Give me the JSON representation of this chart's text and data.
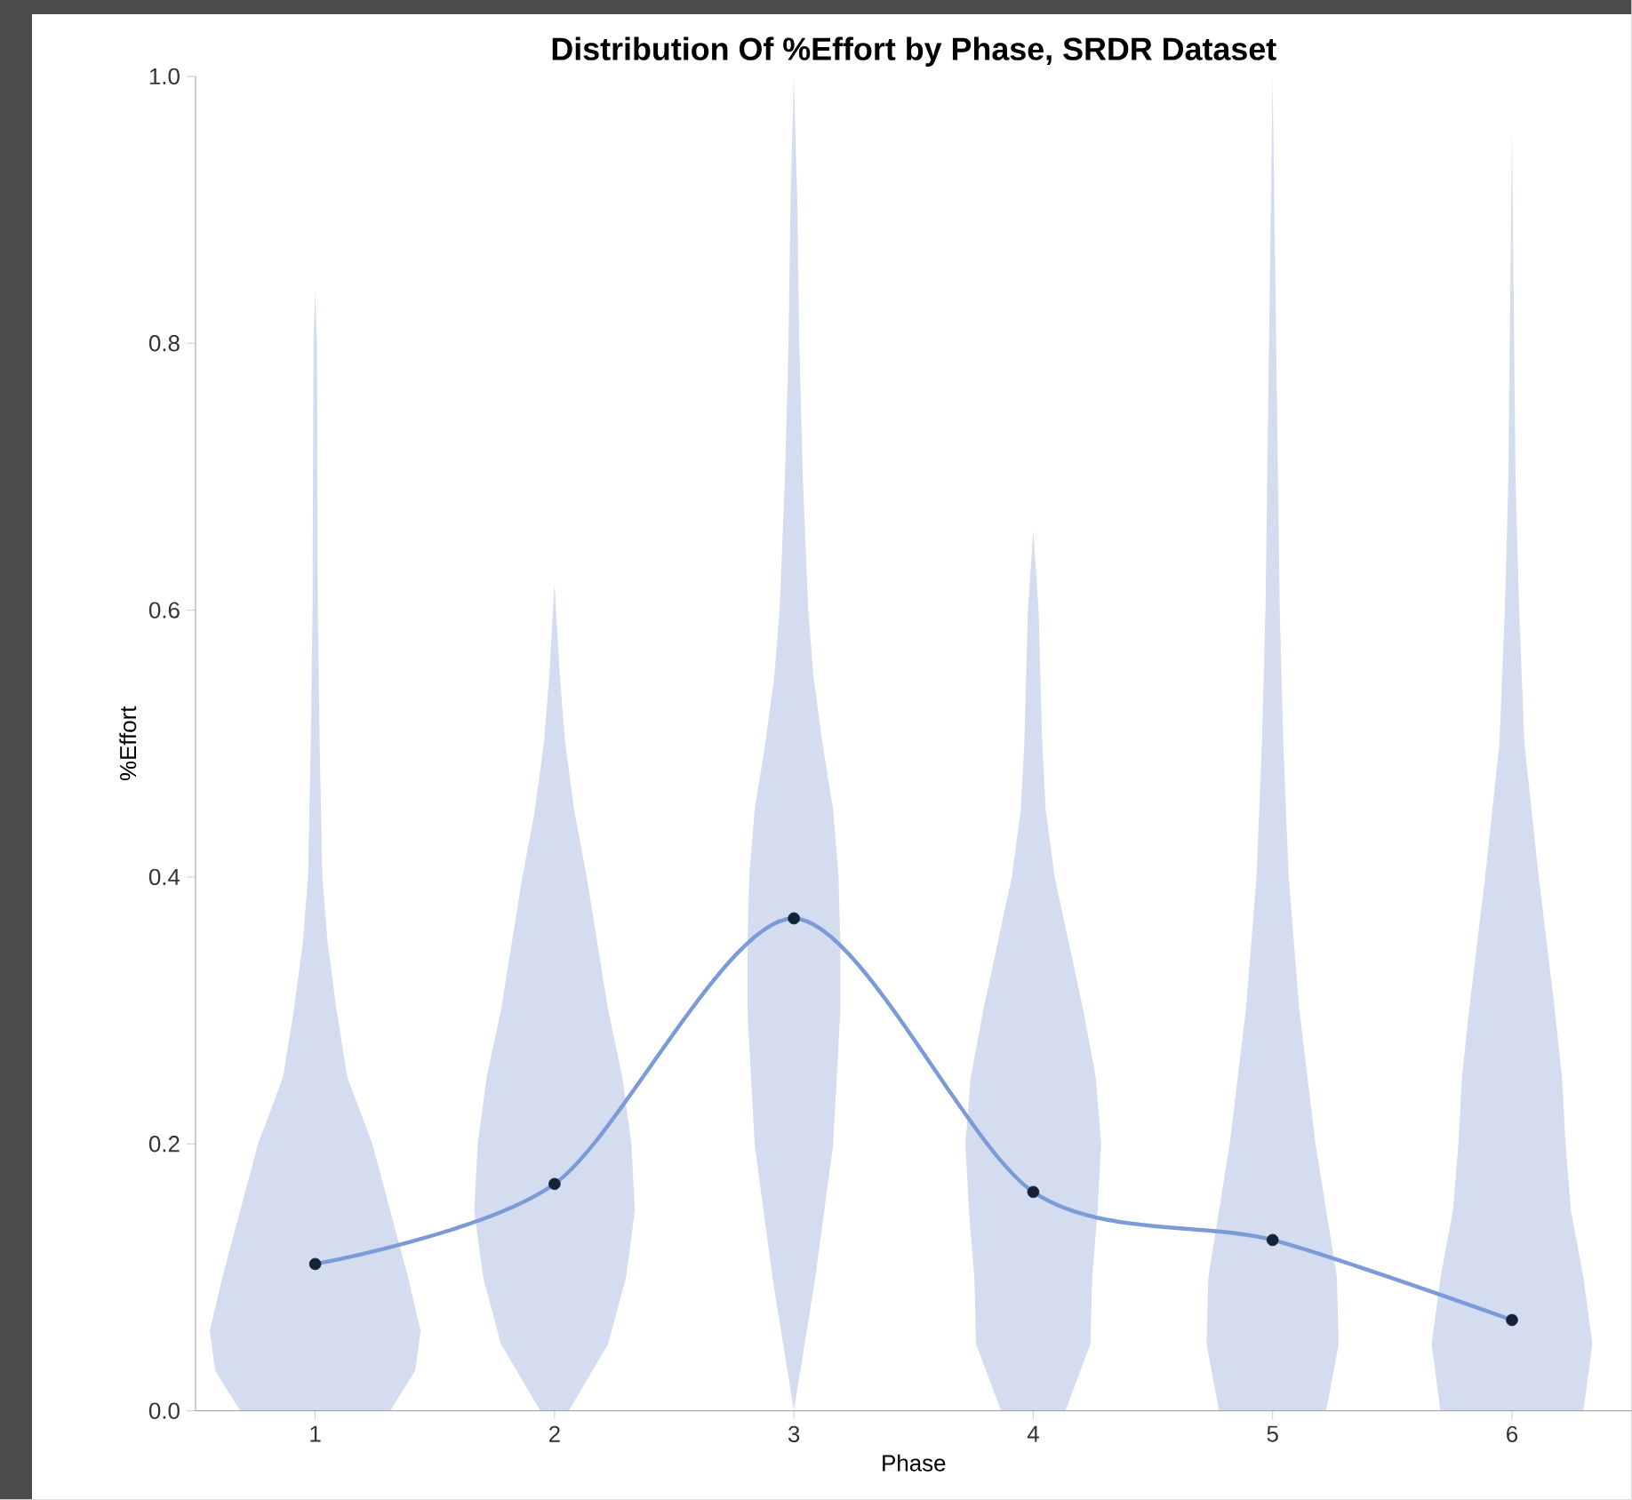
{
  "chart_data": {
    "type": "line",
    "title": "Distribution Of %Effort by Phase, SRDR Dataset",
    "xlabel": "Phase",
    "ylabel": "%Effort",
    "categories": [
      "1",
      "2",
      "3",
      "4",
      "5",
      "6"
    ],
    "series": [
      {
        "color": "#7b9bd8",
        "values": [
          0.11,
          0.17,
          0.369,
          0.164,
          0.128,
          0.068
        ]
      }
    ],
    "ylim": [
      0,
      1
    ],
    "yticks": [
      {
        "value": 0,
        "label": "0.0"
      },
      {
        "value": 0.2,
        "label": "0.2"
      },
      {
        "value": 0.4,
        "label": "0.4"
      },
      {
        "value": 0.6,
        "label": "0.6"
      },
      {
        "value": 0.8,
        "label": "0.8"
      },
      {
        "value": 1,
        "label": "1.0"
      }
    ],
    "marker": "circle",
    "line_style": "solid"
  }
}
